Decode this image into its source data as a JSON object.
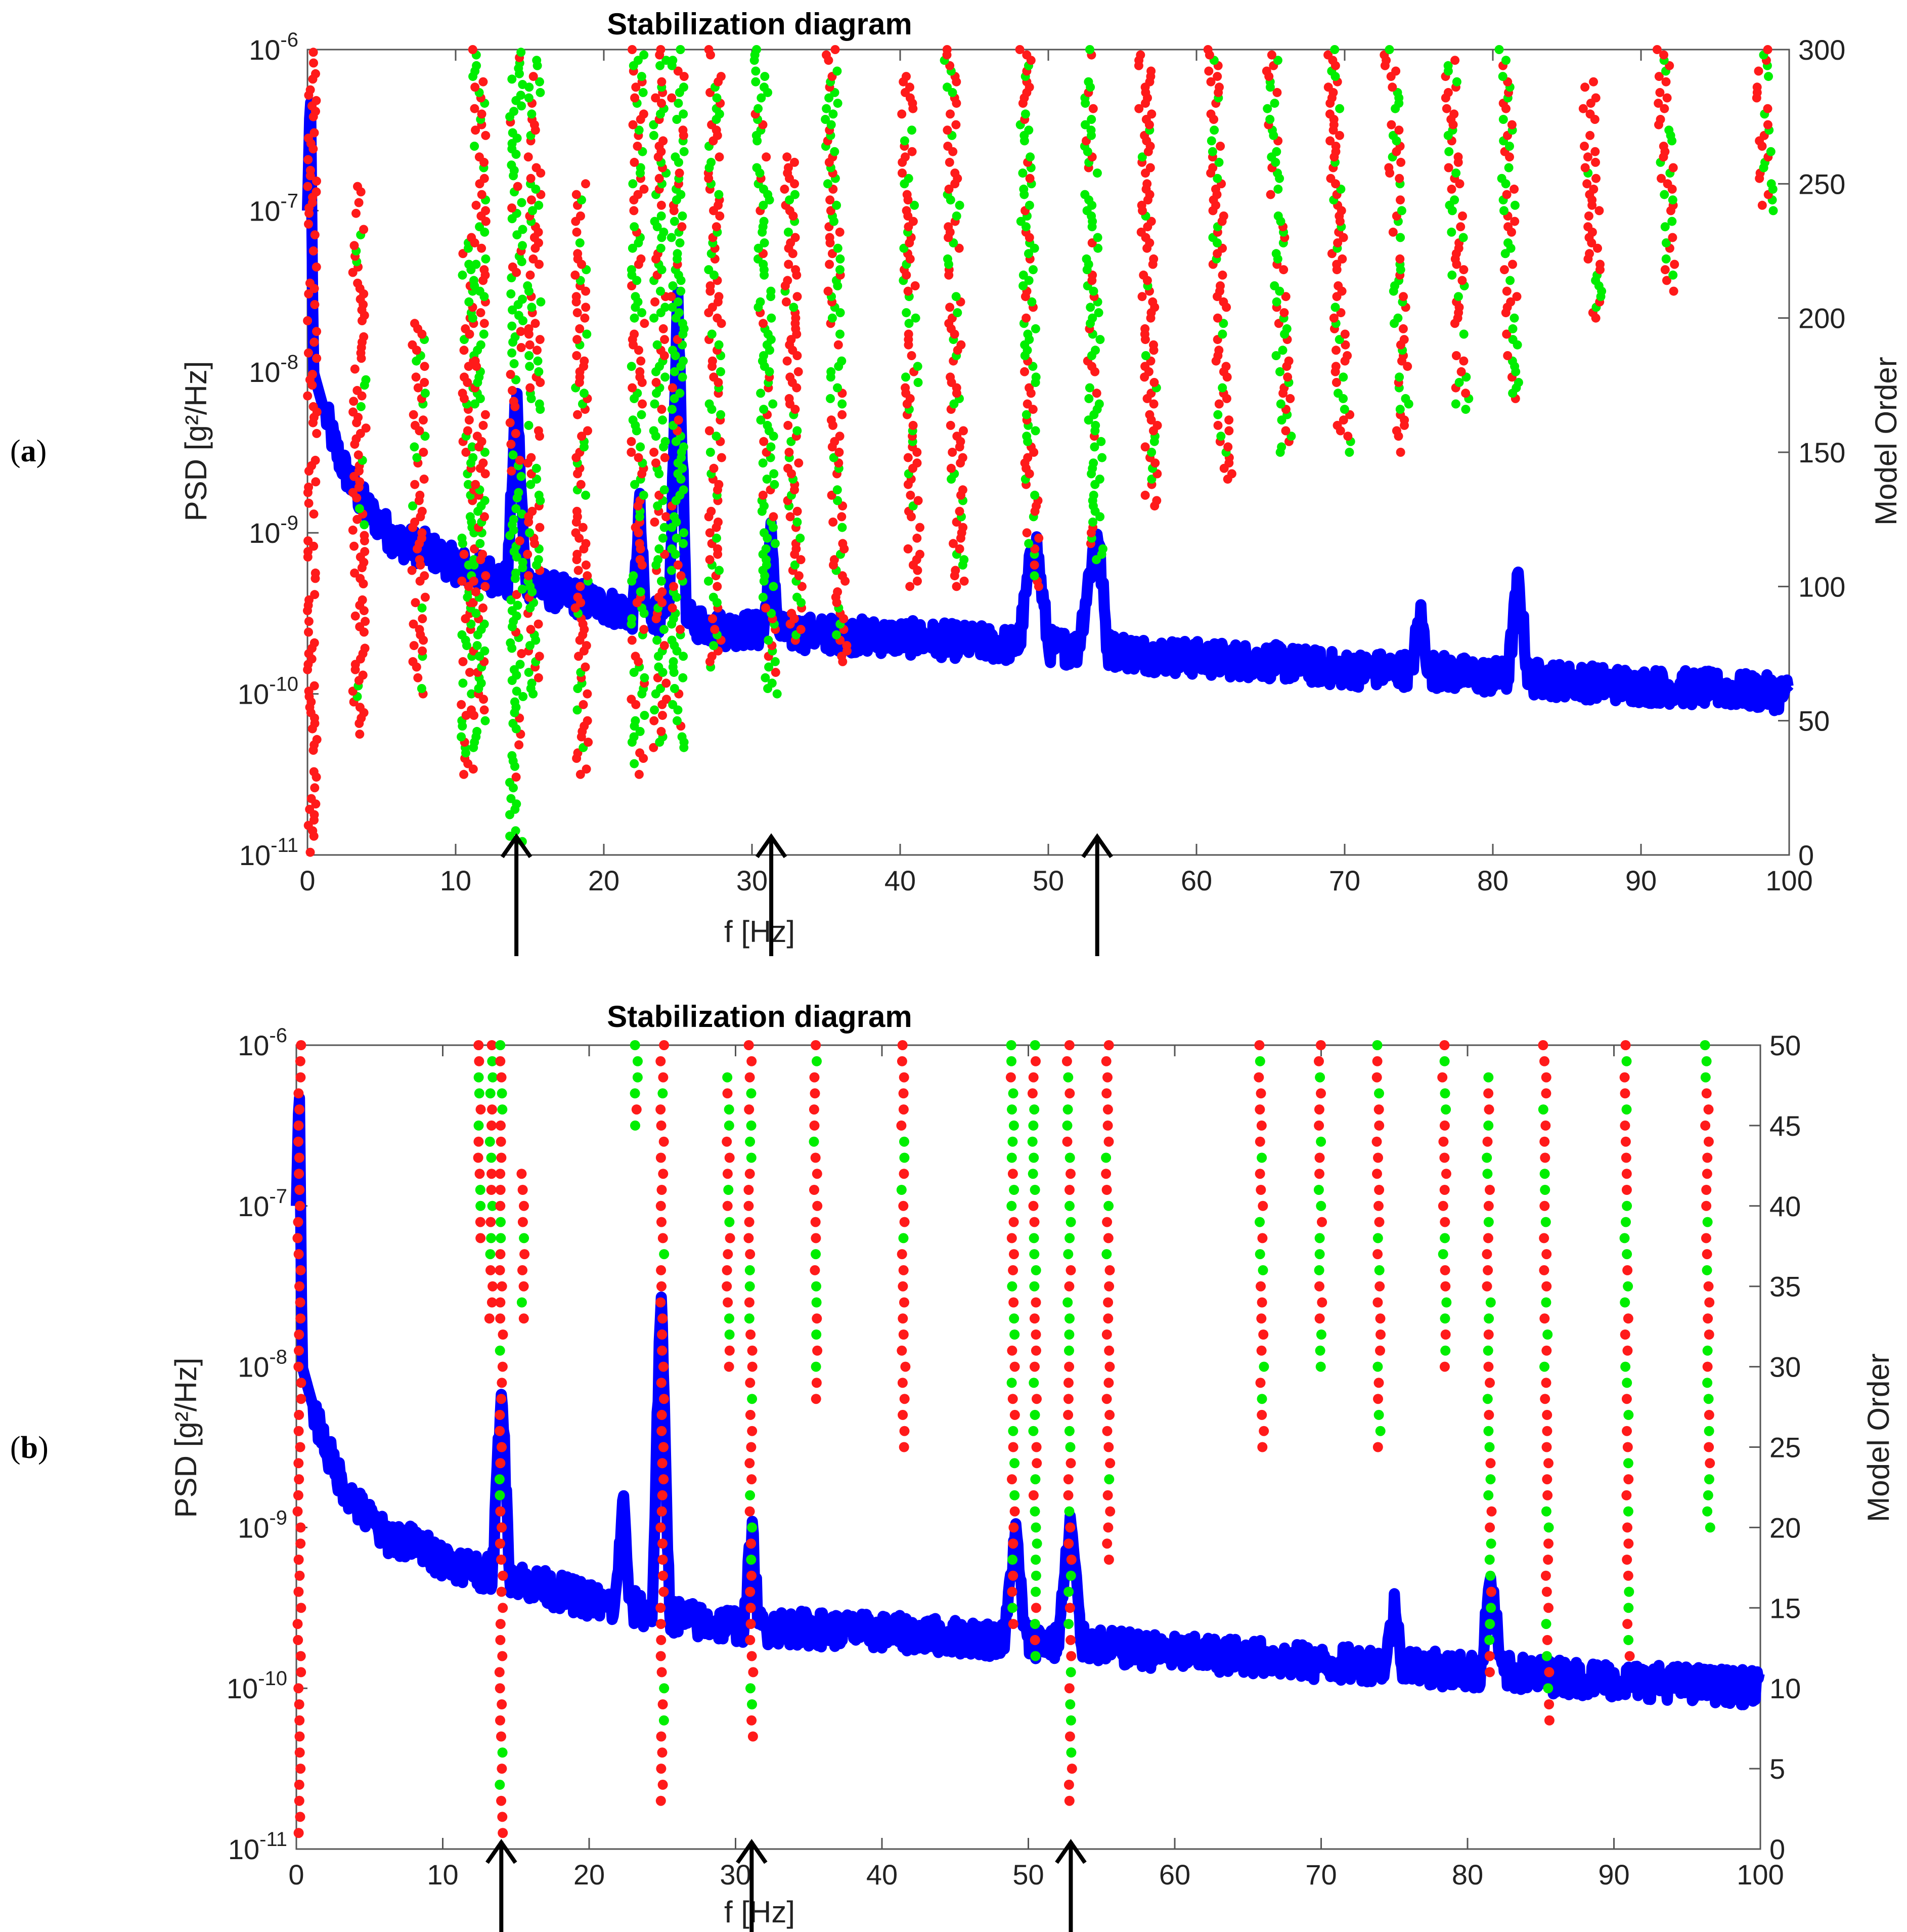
{
  "colors": {
    "psd": "#0000ff",
    "stable": "#00ee00",
    "unstable": "#ff1a1a",
    "axes": "#555555",
    "arrow": "#000000",
    "text": "#222222"
  },
  "panels": [
    {
      "label_text": "(a)",
      "label_bold": "a",
      "title": "Stabilization diagram",
      "xlabel": "f [Hz]",
      "ylabel_left": "PSD [g²/Hz]",
      "ylabel_right": "Model Order",
      "x_ticks": [
        "0",
        "10",
        "20",
        "30",
        "40",
        "50",
        "60",
        "70",
        "80",
        "90",
        "100"
      ],
      "y_left_ticks": [
        {
          "mant": "10",
          "exp": "-11"
        },
        {
          "mant": "10",
          "exp": "-10"
        },
        {
          "mant": "10",
          "exp": "-9"
        },
        {
          "mant": "10",
          "exp": "-8"
        },
        {
          "mant": "10",
          "exp": "-7"
        },
        {
          "mant": "10",
          "exp": "-6"
        }
      ],
      "y_right_ticks": [
        "0",
        "50",
        "100",
        "150",
        "200",
        "250",
        "300"
      ],
      "arrows_hz": [
        14.1,
        31.3,
        53.3
      ]
    },
    {
      "label_text": "(b)",
      "label_bold": "b",
      "title": "Stabilization diagram",
      "xlabel": "f [Hz]",
      "ylabel_left": "PSD [g²/Hz]",
      "ylabel_right": "Model Order",
      "x_ticks": [
        "0",
        "10",
        "20",
        "30",
        "40",
        "50",
        "60",
        "70",
        "80",
        "90",
        "100"
      ],
      "y_left_ticks": [
        {
          "mant": "10",
          "exp": "-11"
        },
        {
          "mant": "10",
          "exp": "-10"
        },
        {
          "mant": "10",
          "exp": "-9"
        },
        {
          "mant": "10",
          "exp": "-8"
        },
        {
          "mant": "10",
          "exp": "-7"
        },
        {
          "mant": "10",
          "exp": "-6"
        }
      ],
      "y_right_ticks": [
        "0",
        "5",
        "10",
        "15",
        "20",
        "25",
        "30",
        "35",
        "40",
        "45",
        "50"
      ],
      "arrows_hz": [
        14.0,
        31.1,
        52.9
      ]
    }
  ],
  "chart_data": [
    {
      "type": "scatter",
      "title": "Stabilization diagram",
      "xlabel": "f [Hz]",
      "ylabel": "PSD [g^2/Hz]",
      "y2label": "Model Order",
      "xlim": [
        0,
        100
      ],
      "ylim_log10": [
        -11,
        -6
      ],
      "y2lim": [
        0,
        300
      ],
      "psd_series": {
        "name": "PSD",
        "type": "line",
        "x": [
          0,
          0.2,
          0.4,
          1,
          2,
          3,
          4,
          5,
          6,
          8,
          10,
          12,
          13.5,
          14.1,
          14.7,
          16,
          18,
          20,
          22,
          22.4,
          22.8,
          23.5,
          24.4,
          25.0,
          25.6,
          26,
          28,
          30,
          30.8,
          31.3,
          31.8,
          33,
          35,
          40,
          45,
          48,
          49.1,
          50,
          52,
          53.3,
          54,
          56,
          60,
          65,
          70,
          74.5,
          75.1,
          75.7,
          78,
          81,
          81.7,
          82.4,
          85,
          90,
          95,
          100
        ],
        "log10_psd": [
          -7,
          -6.2,
          -8.0,
          -8.2,
          -8.5,
          -8.7,
          -8.85,
          -8.95,
          -9.05,
          -9.1,
          -9.2,
          -9.25,
          -9.3,
          -8.1,
          -9.3,
          -9.35,
          -9.4,
          -9.45,
          -9.5,
          -8.8,
          -9.5,
          -9.5,
          -9.55,
          -7.5,
          -9.55,
          -9.55,
          -9.6,
          -9.6,
          -9.62,
          -9.0,
          -9.62,
          -9.62,
          -9.63,
          -9.65,
          -9.68,
          -9.7,
          -9.0,
          -9.7,
          -9.72,
          -8.95,
          -9.72,
          -9.75,
          -9.78,
          -9.8,
          -9.85,
          -9.85,
          -9.5,
          -9.85,
          -9.88,
          -9.9,
          -9.3,
          -9.9,
          -9.92,
          -9.95,
          -9.97,
          -10.0
        ]
      },
      "stabilization_columns": [
        {
          "f": 0.2,
          "order_min": 0,
          "order_max": 300,
          "stable": "none"
        },
        {
          "f": 3.5,
          "order_min": 45,
          "order_max": 250,
          "stable": "few"
        },
        {
          "f": 7.5,
          "order_min": 60,
          "order_max": 200,
          "stable": "few"
        },
        {
          "f": 10.8,
          "order_min": 30,
          "order_max": 230,
          "stable": "many"
        },
        {
          "f": 11.6,
          "order_min": 40,
          "order_max": 300,
          "stable": "many"
        },
        {
          "f": 14.1,
          "order_min": 5,
          "order_max": 300,
          "stable": "most"
        },
        {
          "f": 15.3,
          "order_min": 60,
          "order_max": 300,
          "stable": "many"
        },
        {
          "f": 18.5,
          "order_min": 30,
          "order_max": 250,
          "stable": "some"
        },
        {
          "f": 22.3,
          "order_min": 30,
          "order_max": 300,
          "stable": "many"
        },
        {
          "f": 23.8,
          "order_min": 40,
          "order_max": 300,
          "stable": "many"
        },
        {
          "f": 25.0,
          "order_min": 40,
          "order_max": 300,
          "stable": "most"
        },
        {
          "f": 27.5,
          "order_min": 70,
          "order_max": 300,
          "stable": "some"
        },
        {
          "f": 31.3,
          "order_min": 60,
          "order_max": 300,
          "stable": "most"
        },
        {
          "f": 33.0,
          "order_min": 80,
          "order_max": 260,
          "stable": "some"
        },
        {
          "f": 36.0,
          "order_min": 70,
          "order_max": 300,
          "stable": "some"
        },
        {
          "f": 41.0,
          "order_min": 100,
          "order_max": 290,
          "stable": "some"
        },
        {
          "f": 44.0,
          "order_min": 100,
          "order_max": 300,
          "stable": "some"
        },
        {
          "f": 49.0,
          "order_min": 100,
          "order_max": 300,
          "stable": "many"
        },
        {
          "f": 53.3,
          "order_min": 110,
          "order_max": 300,
          "stable": "most"
        },
        {
          "f": 57.0,
          "order_min": 130,
          "order_max": 300,
          "stable": "some"
        },
        {
          "f": 62.0,
          "order_min": 140,
          "order_max": 300,
          "stable": "some"
        },
        {
          "f": 66.0,
          "order_min": 150,
          "order_max": 300,
          "stable": "many"
        },
        {
          "f": 70.0,
          "order_min": 150,
          "order_max": 300,
          "stable": "some"
        },
        {
          "f": 74.0,
          "order_min": 150,
          "order_max": 300,
          "stable": "many"
        },
        {
          "f": 78.0,
          "order_min": 160,
          "order_max": 300,
          "stable": "some"
        },
        {
          "f": 81.5,
          "order_min": 170,
          "order_max": 300,
          "stable": "many"
        },
        {
          "f": 87.0,
          "order_min": 200,
          "order_max": 290,
          "stable": "some"
        },
        {
          "f": 92.0,
          "order_min": 210,
          "order_max": 300,
          "stable": "some"
        },
        {
          "f": 98.5,
          "order_min": 240,
          "order_max": 300,
          "stable": "many"
        }
      ],
      "arrows_hz": [
        14.1,
        31.3,
        53.3
      ]
    },
    {
      "type": "scatter",
      "title": "Stabilization diagram",
      "xlabel": "f [Hz]",
      "ylabel": "PSD [g^2/Hz]",
      "y2label": "Model Order",
      "xlim": [
        0,
        100
      ],
      "ylim_log10": [
        -11,
        -6
      ],
      "y2lim": [
        0,
        50
      ],
      "psd_series": {
        "name": "PSD",
        "type": "line",
        "x": [
          0,
          0.2,
          0.4,
          1,
          2,
          3,
          4,
          5,
          6,
          8,
          10,
          12,
          13.4,
          14.0,
          14.6,
          16,
          18,
          20,
          21.8,
          22.3,
          22.8,
          23.4,
          24.3,
          24.9,
          25.5,
          26,
          28,
          30,
          30.6,
          31.1,
          31.6,
          33,
          35,
          40,
          45,
          48.4,
          49.1,
          49.8,
          52,
          52.9,
          53.6,
          56,
          60,
          65,
          70,
          74.4,
          75.0,
          75.6,
          78,
          80.9,
          81.6,
          82.3,
          85,
          90,
          95,
          100
        ],
        "log10_psd": [
          -7,
          -6.2,
          -8.0,
          -8.2,
          -8.5,
          -8.7,
          -8.85,
          -8.95,
          -9.05,
          -9.1,
          -9.2,
          -9.25,
          -9.3,
          -8.1,
          -9.3,
          -9.35,
          -9.4,
          -9.45,
          -9.5,
          -8.8,
          -9.5,
          -9.5,
          -9.55,
          -7.5,
          -9.55,
          -9.55,
          -9.6,
          -9.6,
          -9.62,
          -9.0,
          -9.62,
          -9.62,
          -9.63,
          -9.65,
          -9.68,
          -9.7,
          -9.0,
          -9.7,
          -9.72,
          -8.95,
          -9.72,
          -9.75,
          -9.78,
          -9.8,
          -9.85,
          -9.85,
          -9.5,
          -9.85,
          -9.88,
          -9.9,
          -9.3,
          -9.9,
          -9.92,
          -9.95,
          -9.97,
          -10.0
        ]
      },
      "stabilization_columns": [
        {
          "f": 0.2,
          "order_min": 0,
          "order_max": 50,
          "stable": "none"
        },
        {
          "f": 12.5,
          "order_min": 38,
          "order_max": 50,
          "stable": "many"
        },
        {
          "f": 13.3,
          "order_min": 33,
          "order_max": 50,
          "stable": "many"
        },
        {
          "f": 14.0,
          "order_min": 1,
          "order_max": 50,
          "stable": "some"
        },
        {
          "f": 15.5,
          "order_min": 33,
          "order_max": 42,
          "stable": "some"
        },
        {
          "f": 23.2,
          "order_min": 45,
          "order_max": 50,
          "stable": "many"
        },
        {
          "f": 25.0,
          "order_min": 3,
          "order_max": 50,
          "stable": "few"
        },
        {
          "f": 29.5,
          "order_min": 30,
          "order_max": 48,
          "stable": "some"
        },
        {
          "f": 31.1,
          "order_min": 7,
          "order_max": 50,
          "stable": "some"
        },
        {
          "f": 35.5,
          "order_min": 28,
          "order_max": 50,
          "stable": "some"
        },
        {
          "f": 41.5,
          "order_min": 25,
          "order_max": 50,
          "stable": "few"
        },
        {
          "f": 49.0,
          "order_min": 14,
          "order_max": 50,
          "stable": "many"
        },
        {
          "f": 50.5,
          "order_min": 12,
          "order_max": 50,
          "stable": "many"
        },
        {
          "f": 52.9,
          "order_min": 3,
          "order_max": 50,
          "stable": "many"
        },
        {
          "f": 55.5,
          "order_min": 18,
          "order_max": 50,
          "stable": "few"
        },
        {
          "f": 66.0,
          "order_min": 25,
          "order_max": 50,
          "stable": "some"
        },
        {
          "f": 70.0,
          "order_min": 30,
          "order_max": 50,
          "stable": "many"
        },
        {
          "f": 74.0,
          "order_min": 25,
          "order_max": 50,
          "stable": "some"
        },
        {
          "f": 78.5,
          "order_min": 30,
          "order_max": 50,
          "stable": "some"
        },
        {
          "f": 81.6,
          "order_min": 11,
          "order_max": 48,
          "stable": "many"
        },
        {
          "f": 85.5,
          "order_min": 8,
          "order_max": 50,
          "stable": "some"
        },
        {
          "f": 91.0,
          "order_min": 12,
          "order_max": 50,
          "stable": "some"
        },
        {
          "f": 96.5,
          "order_min": 20,
          "order_max": 50,
          "stable": "many"
        }
      ],
      "arrows_hz": [
        14.0,
        31.1,
        52.9
      ]
    }
  ]
}
